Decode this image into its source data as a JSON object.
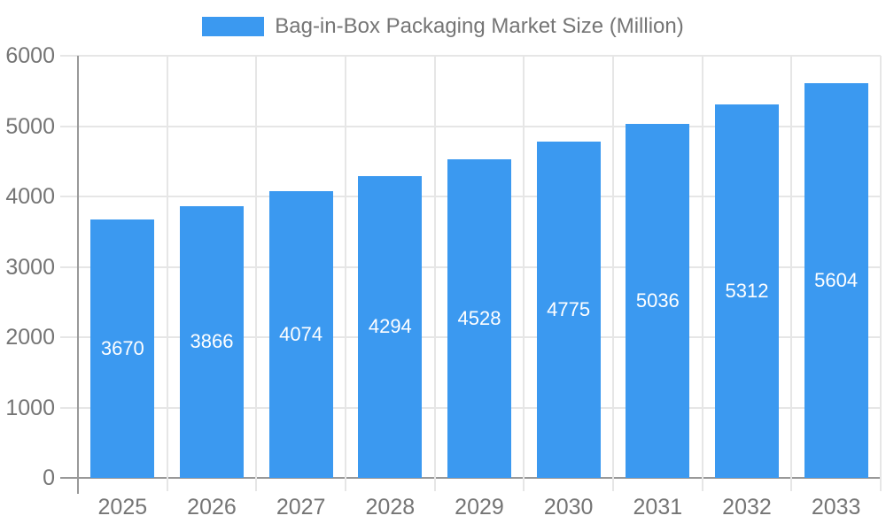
{
  "legend": {
    "label": "Bag-in-Box Packaging Market Size (Million)"
  },
  "chart_data": {
    "type": "bar",
    "title": "Bag-in-Box Packaging Market Size (Million)",
    "categories": [
      "2025",
      "2026",
      "2027",
      "2028",
      "2029",
      "2030",
      "2031",
      "2032",
      "2033"
    ],
    "values": [
      3670,
      3866,
      4074,
      4294,
      4528,
      4775,
      5036,
      5312,
      5604
    ],
    "xlabel": "",
    "ylabel": "",
    "ylim": [
      0,
      6000
    ],
    "ytick_step": 1000,
    "ytick_labels": [
      "0",
      "1000",
      "2000",
      "3000",
      "4000",
      "5000",
      "6000"
    ],
    "grid": true,
    "legend_position": "top",
    "value_labels": "inside-center",
    "colors": {
      "bar": "#3b99f0",
      "grid": "#e6e6e6",
      "axis": "#999999",
      "tick_text": "#757575",
      "value_text": "#ffffff",
      "background": "#ffffff"
    }
  }
}
